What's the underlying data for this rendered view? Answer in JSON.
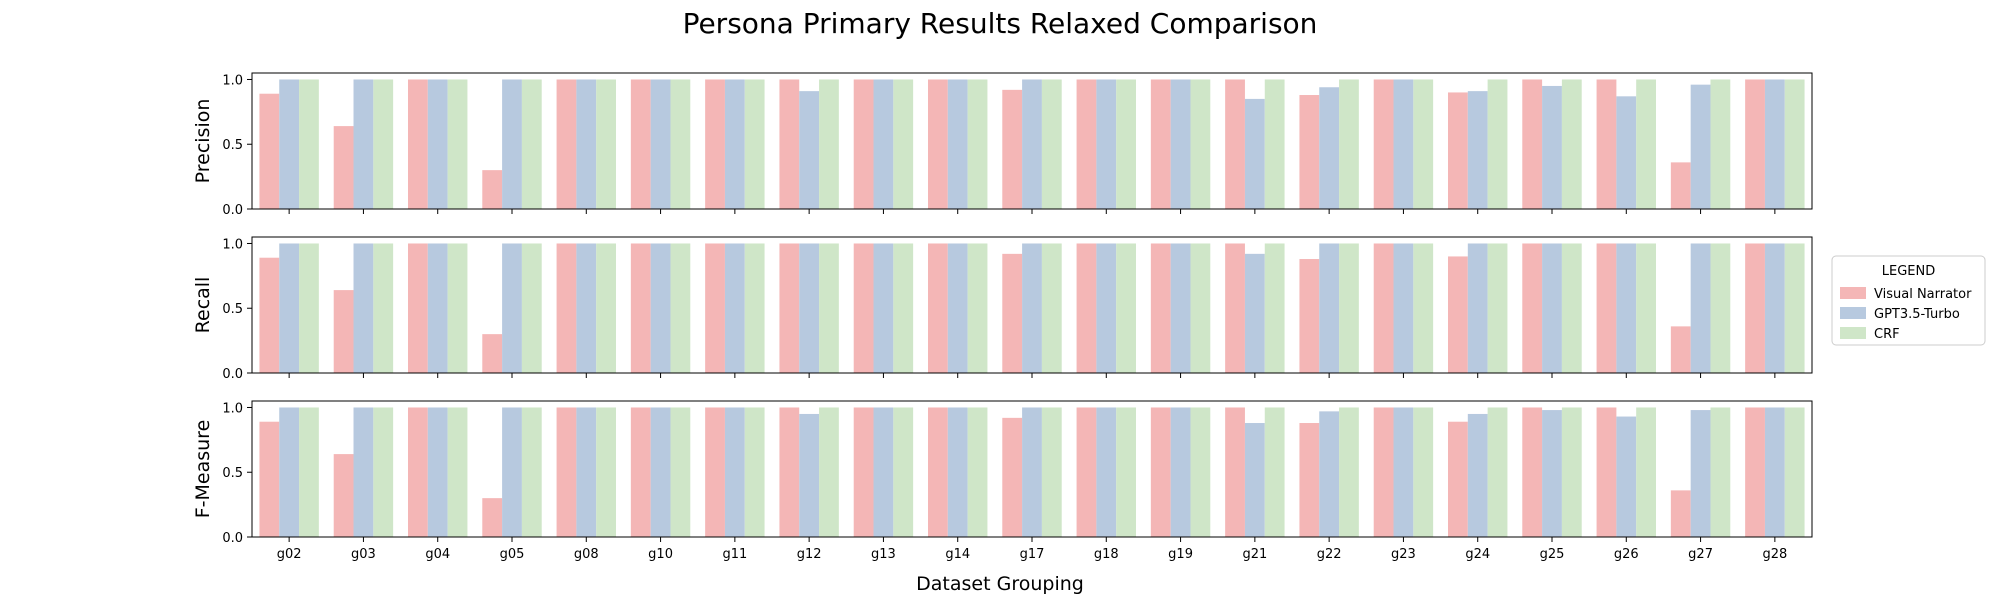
{
  "chart_data": {
    "type": "bar",
    "title": "Persona Primary Results Relaxed Comparison",
    "xlabel": "Dataset Grouping",
    "categories": [
      "g02",
      "g03",
      "g04",
      "g05",
      "g08",
      "g10",
      "g11",
      "g12",
      "g13",
      "g14",
      "g17",
      "g18",
      "g19",
      "g21",
      "g22",
      "g23",
      "g24",
      "g25",
      "g26",
      "g27",
      "g28"
    ],
    "legend": {
      "title": "LEGEND",
      "placement": "right",
      "entries": [
        "Visual Narrator",
        "GPT3.5-Turbo",
        "CRF"
      ]
    },
    "colors": [
      "#f4b6b6",
      "#b7c9df",
      "#cfe6c8"
    ],
    "grid": false,
    "ylim": [
      0,
      1.05
    ],
    "yticks": [
      "0.0",
      "0.5",
      "1.0"
    ],
    "panels": [
      {
        "ylabel": "Precision",
        "series": [
          {
            "name": "Visual Narrator",
            "values": [
              0.89,
              0.64,
              1.0,
              0.3,
              1.0,
              1.0,
              1.0,
              1.0,
              1.0,
              1.0,
              0.92,
              1.0,
              1.0,
              1.0,
              0.88,
              1.0,
              0.9,
              1.0,
              1.0,
              0.36,
              1.0
            ]
          },
          {
            "name": "GPT3.5-Turbo",
            "values": [
              1.0,
              1.0,
              1.0,
              1.0,
              1.0,
              1.0,
              1.0,
              0.91,
              1.0,
              1.0,
              1.0,
              1.0,
              1.0,
              0.85,
              0.94,
              1.0,
              0.91,
              0.95,
              0.87,
              0.96,
              1.0
            ]
          },
          {
            "name": "CRF",
            "values": [
              1.0,
              1.0,
              1.0,
              1.0,
              1.0,
              1.0,
              1.0,
              1.0,
              1.0,
              1.0,
              1.0,
              1.0,
              1.0,
              1.0,
              1.0,
              1.0,
              1.0,
              1.0,
              1.0,
              1.0,
              1.0
            ]
          }
        ]
      },
      {
        "ylabel": "Recall",
        "series": [
          {
            "name": "Visual Narrator",
            "values": [
              0.89,
              0.64,
              1.0,
              0.3,
              1.0,
              1.0,
              1.0,
              1.0,
              1.0,
              1.0,
              0.92,
              1.0,
              1.0,
              1.0,
              0.88,
              1.0,
              0.9,
              1.0,
              1.0,
              0.36,
              1.0
            ]
          },
          {
            "name": "GPT3.5-Turbo",
            "values": [
              1.0,
              1.0,
              1.0,
              1.0,
              1.0,
              1.0,
              1.0,
              1.0,
              1.0,
              1.0,
              1.0,
              1.0,
              1.0,
              0.92,
              1.0,
              1.0,
              1.0,
              1.0,
              1.0,
              1.0,
              1.0
            ]
          },
          {
            "name": "CRF",
            "values": [
              1.0,
              1.0,
              1.0,
              1.0,
              1.0,
              1.0,
              1.0,
              1.0,
              1.0,
              1.0,
              1.0,
              1.0,
              1.0,
              1.0,
              1.0,
              1.0,
              1.0,
              1.0,
              1.0,
              1.0,
              1.0
            ]
          }
        ]
      },
      {
        "ylabel": "F-Measure",
        "series": [
          {
            "name": "Visual Narrator",
            "values": [
              0.89,
              0.64,
              1.0,
              0.3,
              1.0,
              1.0,
              1.0,
              1.0,
              1.0,
              1.0,
              0.92,
              1.0,
              1.0,
              1.0,
              0.88,
              1.0,
              0.89,
              1.0,
              1.0,
              0.36,
              1.0
            ]
          },
          {
            "name": "GPT3.5-Turbo",
            "values": [
              1.0,
              1.0,
              1.0,
              1.0,
              1.0,
              1.0,
              1.0,
              0.95,
              1.0,
              1.0,
              1.0,
              1.0,
              1.0,
              0.88,
              0.97,
              1.0,
              0.95,
              0.98,
              0.93,
              0.98,
              1.0
            ]
          },
          {
            "name": "CRF",
            "values": [
              1.0,
              1.0,
              1.0,
              1.0,
              1.0,
              1.0,
              1.0,
              1.0,
              1.0,
              1.0,
              1.0,
              1.0,
              1.0,
              1.0,
              1.0,
              1.0,
              1.0,
              1.0,
              1.0,
              1.0,
              1.0
            ]
          }
        ]
      }
    ]
  }
}
